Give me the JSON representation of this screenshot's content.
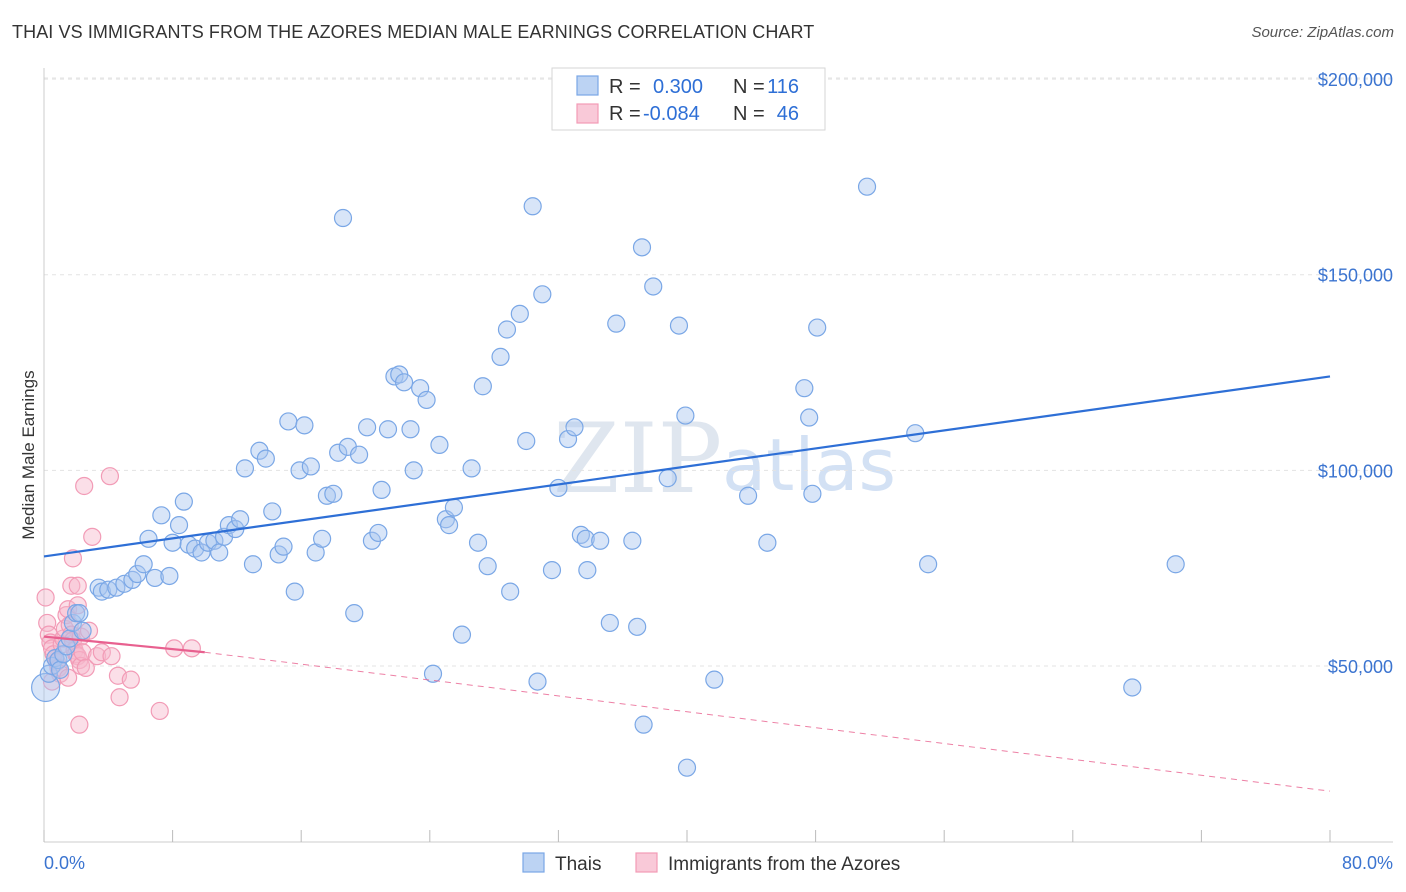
{
  "title": "THAI VS IMMIGRANTS FROM THE AZORES MEDIAN MALE EARNINGS CORRELATION CHART",
  "source": "Source: ZipAtlas.com",
  "watermark": {
    "zip": "ZIP",
    "atlas": "atlas"
  },
  "legend": {
    "rows": [
      {
        "r_label": "R =",
        "r_value": "0.300",
        "n_label": "N =",
        "n_value": "116",
        "color": "#7aa7e6"
      },
      {
        "r_label": "R =",
        "r_value": "-0.084",
        "n_label": "N =",
        "n_value": "46",
        "color": "#f29bb6"
      }
    ]
  },
  "bottom_legend": [
    {
      "label": "Thais",
      "color": "#7aa7e6"
    },
    {
      "label": "Immigrants from the Azores",
      "color": "#f29bb6"
    }
  ],
  "colors": {
    "blue": "#2e6fd6",
    "pink": "#e8608f",
    "blue_fill": "#a9c6ef",
    "pink_fill": "#f6b7cb"
  },
  "chart_data": {
    "type": "scatter",
    "title": "THAI VS IMMIGRANTS FROM THE AZORES MEDIAN MALE EARNINGS CORRELATION CHART",
    "xlabel": "",
    "ylabel": "Median Male Earnings",
    "xlim": [
      0,
      80
    ],
    "ylim": [
      5000,
      210000
    ],
    "x_tick_labels": {
      "min": "0.0%",
      "max": "80.0%"
    },
    "y_ticks": [
      {
        "value": 50000,
        "label": "$50,000"
      },
      {
        "value": 100000,
        "label": "$100,000"
      },
      {
        "value": 150000,
        "label": "$150,000"
      },
      {
        "value": 200000,
        "label": "$200,000"
      }
    ],
    "series": [
      {
        "name": "Thais",
        "R": 0.3,
        "N": 116,
        "trendline": {
          "x": [
            0,
            80
          ],
          "y": [
            78000,
            124000
          ],
          "style": "solid"
        },
        "points": [
          [
            0.1,
            44500
          ],
          [
            0.3,
            48000
          ],
          [
            0.5,
            50000
          ],
          [
            0.7,
            52000
          ],
          [
            0.9,
            51500
          ],
          [
            1.0,
            49000
          ],
          [
            1.2,
            53000
          ],
          [
            1.4,
            55000
          ],
          [
            1.6,
            57000
          ],
          [
            1.8,
            61000
          ],
          [
            2.0,
            63500
          ],
          [
            2.2,
            63500
          ],
          [
            2.4,
            59000
          ],
          [
            3.4,
            70000
          ],
          [
            3.6,
            69000
          ],
          [
            4.0,
            69500
          ],
          [
            4.5,
            70000
          ],
          [
            5.0,
            71000
          ],
          [
            5.5,
            72000
          ],
          [
            5.8,
            73500
          ],
          [
            6.2,
            76000
          ],
          [
            6.5,
            82500
          ],
          [
            6.9,
            72500
          ],
          [
            7.3,
            88500
          ],
          [
            7.8,
            73000
          ],
          [
            8.0,
            81500
          ],
          [
            8.4,
            86000
          ],
          [
            8.7,
            92000
          ],
          [
            9.0,
            81000
          ],
          [
            9.4,
            80000
          ],
          [
            9.8,
            79000
          ],
          [
            10.2,
            81500
          ],
          [
            10.6,
            82000
          ],
          [
            10.9,
            79000
          ],
          [
            11.2,
            83000
          ],
          [
            11.5,
            86000
          ],
          [
            11.9,
            85000
          ],
          [
            12.2,
            87500
          ],
          [
            12.5,
            100500
          ],
          [
            13.0,
            76000
          ],
          [
            13.4,
            105000
          ],
          [
            13.8,
            103000
          ],
          [
            14.2,
            89500
          ],
          [
            14.6,
            78500
          ],
          [
            14.9,
            80500
          ],
          [
            15.2,
            112500
          ],
          [
            15.6,
            69000
          ],
          [
            15.9,
            100000
          ],
          [
            16.2,
            111500
          ],
          [
            16.6,
            101000
          ],
          [
            16.9,
            79000
          ],
          [
            17.3,
            82500
          ],
          [
            17.6,
            93500
          ],
          [
            18.0,
            94000
          ],
          [
            18.3,
            104500
          ],
          [
            18.6,
            164500
          ],
          [
            18.9,
            106000
          ],
          [
            19.3,
            63500
          ],
          [
            19.6,
            104000
          ],
          [
            20.1,
            111000
          ],
          [
            20.4,
            82000
          ],
          [
            20.8,
            84000
          ],
          [
            21.0,
            95000
          ],
          [
            21.4,
            110500
          ],
          [
            21.8,
            124000
          ],
          [
            22.1,
            124500
          ],
          [
            22.4,
            122500
          ],
          [
            22.8,
            110500
          ],
          [
            23.0,
            100000
          ],
          [
            23.4,
            121000
          ],
          [
            23.8,
            118000
          ],
          [
            24.2,
            48000
          ],
          [
            24.6,
            106500
          ],
          [
            25.0,
            87500
          ],
          [
            25.2,
            86000
          ],
          [
            25.5,
            90500
          ],
          [
            26.0,
            58000
          ],
          [
            26.6,
            100500
          ],
          [
            27.0,
            81500
          ],
          [
            27.3,
            121500
          ],
          [
            27.6,
            75500
          ],
          [
            28.4,
            129000
          ],
          [
            28.8,
            136000
          ],
          [
            29.0,
            69000
          ],
          [
            29.6,
            140000
          ],
          [
            30.0,
            107500
          ],
          [
            30.4,
            167500
          ],
          [
            30.7,
            46000
          ],
          [
            31.0,
            145000
          ],
          [
            31.6,
            74500
          ],
          [
            32.0,
            95500
          ],
          [
            32.6,
            108000
          ],
          [
            33.0,
            111000
          ],
          [
            33.4,
            83500
          ],
          [
            33.8,
            74500
          ],
          [
            33.7,
            82500
          ],
          [
            34.6,
            82000
          ],
          [
            35.2,
            61000
          ],
          [
            35.6,
            137500
          ],
          [
            36.6,
            82000
          ],
          [
            36.9,
            60000
          ],
          [
            37.2,
            157000
          ],
          [
            37.9,
            147000
          ],
          [
            37.3,
            35000
          ],
          [
            38.8,
            98000
          ],
          [
            39.5,
            137000
          ],
          [
            39.9,
            114000
          ],
          [
            40.0,
            24000
          ],
          [
            41.7,
            46500
          ],
          [
            43.8,
            93500
          ],
          [
            45.0,
            81500
          ],
          [
            47.3,
            121000
          ],
          [
            47.6,
            113500
          ],
          [
            47.8,
            94000
          ],
          [
            48.1,
            136500
          ],
          [
            51.2,
            172500
          ],
          [
            54.2,
            109500
          ],
          [
            55.0,
            76000
          ],
          [
            67.7,
            44500
          ],
          [
            70.4,
            76000
          ]
        ]
      },
      {
        "name": "Immigrants from the Azores",
        "R": -0.084,
        "N": 46,
        "trendline": {
          "x": [
            0,
            10
          ],
          "y": [
            57500,
            53500
          ],
          "style": "solid",
          "extended_to": [
            80,
            18000
          ],
          "extended_style": "dashed"
        },
        "points": [
          [
            0.1,
            67500
          ],
          [
            0.2,
            61000
          ],
          [
            0.3,
            58000
          ],
          [
            0.4,
            56000
          ],
          [
            0.5,
            54500
          ],
          [
            0.6,
            53000
          ],
          [
            0.7,
            52000
          ],
          [
            0.8,
            51000
          ],
          [
            0.9,
            49500
          ],
          [
            1.0,
            48000
          ],
          [
            1.1,
            55500
          ],
          [
            1.2,
            57000
          ],
          [
            1.3,
            59500
          ],
          [
            1.4,
            63000
          ],
          [
            1.5,
            64500
          ],
          [
            1.6,
            60500
          ],
          [
            1.7,
            58000
          ],
          [
            1.8,
            56500
          ],
          [
            1.9,
            54000
          ],
          [
            2.0,
            53000
          ],
          [
            2.1,
            52500
          ],
          [
            2.2,
            51500
          ],
          [
            2.3,
            50000
          ],
          [
            1.7,
            70500
          ],
          [
            1.8,
            77500
          ],
          [
            2.1,
            65500
          ],
          [
            2.3,
            57500
          ],
          [
            2.4,
            53500
          ],
          [
            2.1,
            70500
          ],
          [
            2.5,
            96000
          ],
          [
            2.6,
            49500
          ],
          [
            2.8,
            59000
          ],
          [
            3.0,
            83000
          ],
          [
            3.3,
            52500
          ],
          [
            3.6,
            53500
          ],
          [
            4.1,
            98500
          ],
          [
            4.2,
            52500
          ],
          [
            4.6,
            47500
          ],
          [
            4.7,
            42000
          ],
          [
            5.4,
            46500
          ],
          [
            7.2,
            38500
          ],
          [
            8.1,
            54500
          ],
          [
            9.2,
            54500
          ],
          [
            2.2,
            35000
          ],
          [
            1.5,
            47000
          ],
          [
            0.5,
            46000
          ]
        ]
      }
    ]
  }
}
